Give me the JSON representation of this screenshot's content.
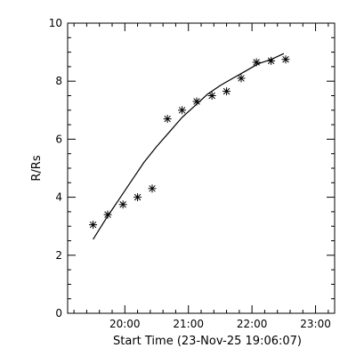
{
  "chart_data": {
    "type": "scatter",
    "title": "",
    "xlabel": "Start Time (23-Nov-25 19:06:07)",
    "ylabel": "R/Rs",
    "x_unit": "hours after 19:06:07",
    "xlim": [
      0,
      4.2
    ],
    "ylim": [
      0,
      10
    ],
    "x_major_ticks": [
      0.9,
      1.9,
      2.9,
      3.9
    ],
    "x_tick_labels": [
      "20:00",
      "21:00",
      "22:00",
      "23:00"
    ],
    "x_minor_step": 0.2,
    "y_major_ticks": [
      0,
      2,
      4,
      6,
      8,
      10
    ],
    "y_tick_labels": [
      "0",
      "2",
      "4",
      "6",
      "8",
      "10"
    ],
    "y_minor_step": 0.5,
    "grid": false,
    "legend": "none",
    "colors": {
      "marks": "#000000",
      "background": "#ffffff"
    },
    "series": [
      {
        "kind": "points",
        "marker": "asterisk",
        "x": [
          0.4,
          0.63,
          0.87,
          1.1,
          1.33,
          1.57,
          1.8,
          2.03,
          2.27,
          2.5,
          2.73,
          2.97,
          3.2,
          3.43
        ],
        "y": [
          3.05,
          3.4,
          3.75,
          4.0,
          4.3,
          6.7,
          7.0,
          7.3,
          7.5,
          7.65,
          8.1,
          8.65,
          8.7,
          8.75
        ]
      },
      {
        "kind": "line",
        "x": [
          0.4,
          0.6,
          0.8,
          1.0,
          1.2,
          1.4,
          1.6,
          1.8,
          2.0,
          2.2,
          2.4,
          2.6,
          2.8,
          3.0,
          3.2,
          3.4
        ],
        "y": [
          2.55,
          3.25,
          3.9,
          4.55,
          5.2,
          5.75,
          6.25,
          6.75,
          7.15,
          7.55,
          7.85,
          8.1,
          8.35,
          8.6,
          8.75,
          8.95
        ]
      }
    ]
  }
}
